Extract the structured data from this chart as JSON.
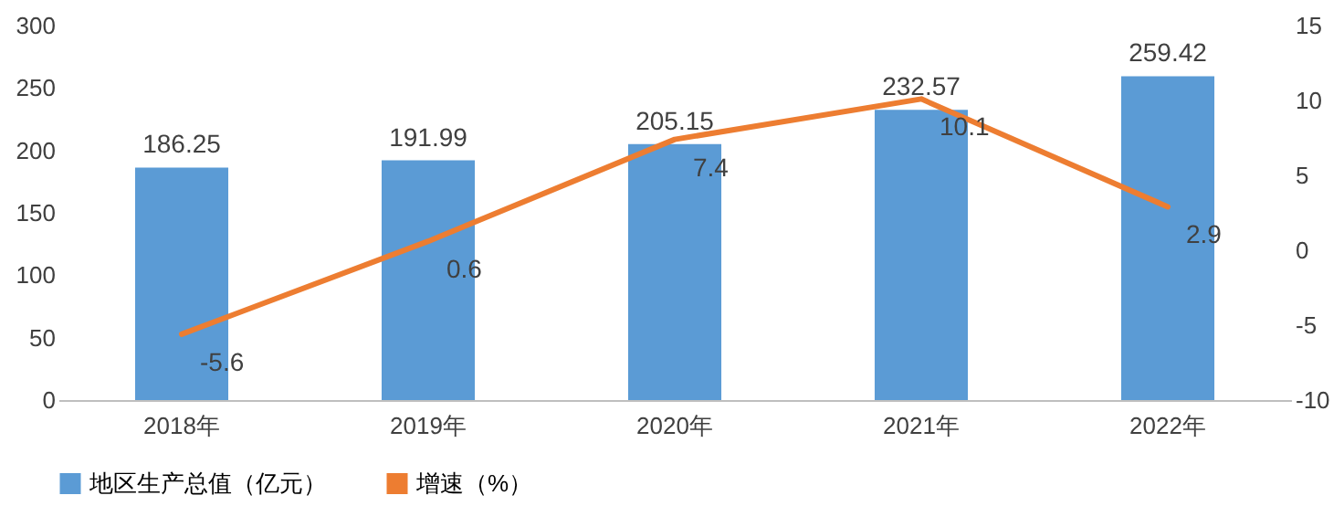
{
  "chart_data": {
    "type": "bar",
    "categories": [
      "2018年",
      "2019年",
      "2020年",
      "2021年",
      "2022年"
    ],
    "series": [
      {
        "name": "地区生产总值（亿元）",
        "color": "#5b9bd5",
        "values": [
          186.25,
          191.99,
          205.15,
          232.57,
          259.42
        ]
      },
      {
        "name": "增速（%）",
        "type": "line",
        "axis": "y2",
        "color": "#ed7d31",
        "values": [
          -5.6,
          0.6,
          7.4,
          10.1,
          2.9
        ]
      }
    ],
    "ylim": [
      0,
      300
    ],
    "yticks": [
      0,
      50,
      100,
      150,
      200,
      250,
      300
    ],
    "y2lim": [
      -10,
      15
    ],
    "y2ticks": [
      -10,
      -5,
      0,
      5,
      10,
      15
    ],
    "data_labels": true,
    "legend": "bottom",
    "grid": false
  }
}
